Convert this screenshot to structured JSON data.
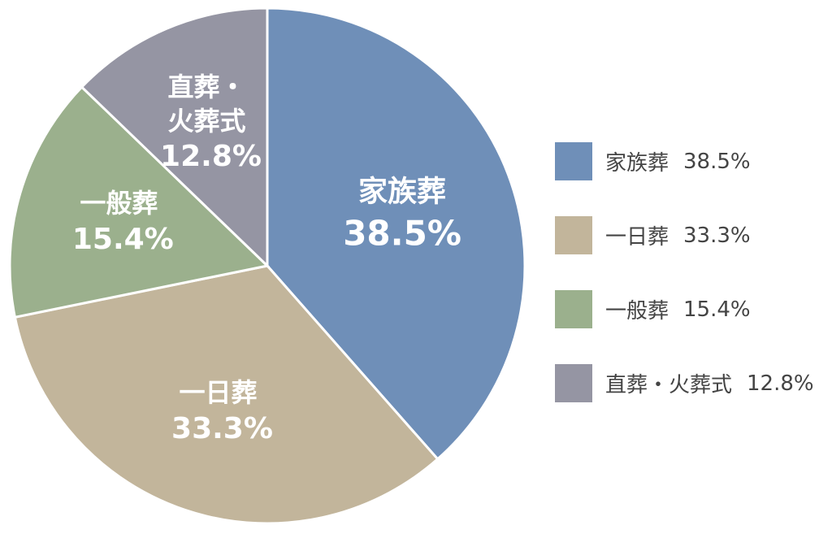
{
  "chart_data": {
    "type": "pie",
    "categories": [
      "家族葬",
      "一日葬",
      "一般葬",
      "直葬・火葬式"
    ],
    "values": [
      38.5,
      33.3,
      15.4,
      12.8
    ],
    "value_labels": [
      "38.5%",
      "33.3%",
      "15.4%",
      "12.8%"
    ],
    "colors": [
      "#6f8fb8",
      "#c2b59b",
      "#9bb08d",
      "#9595a3"
    ]
  }
}
